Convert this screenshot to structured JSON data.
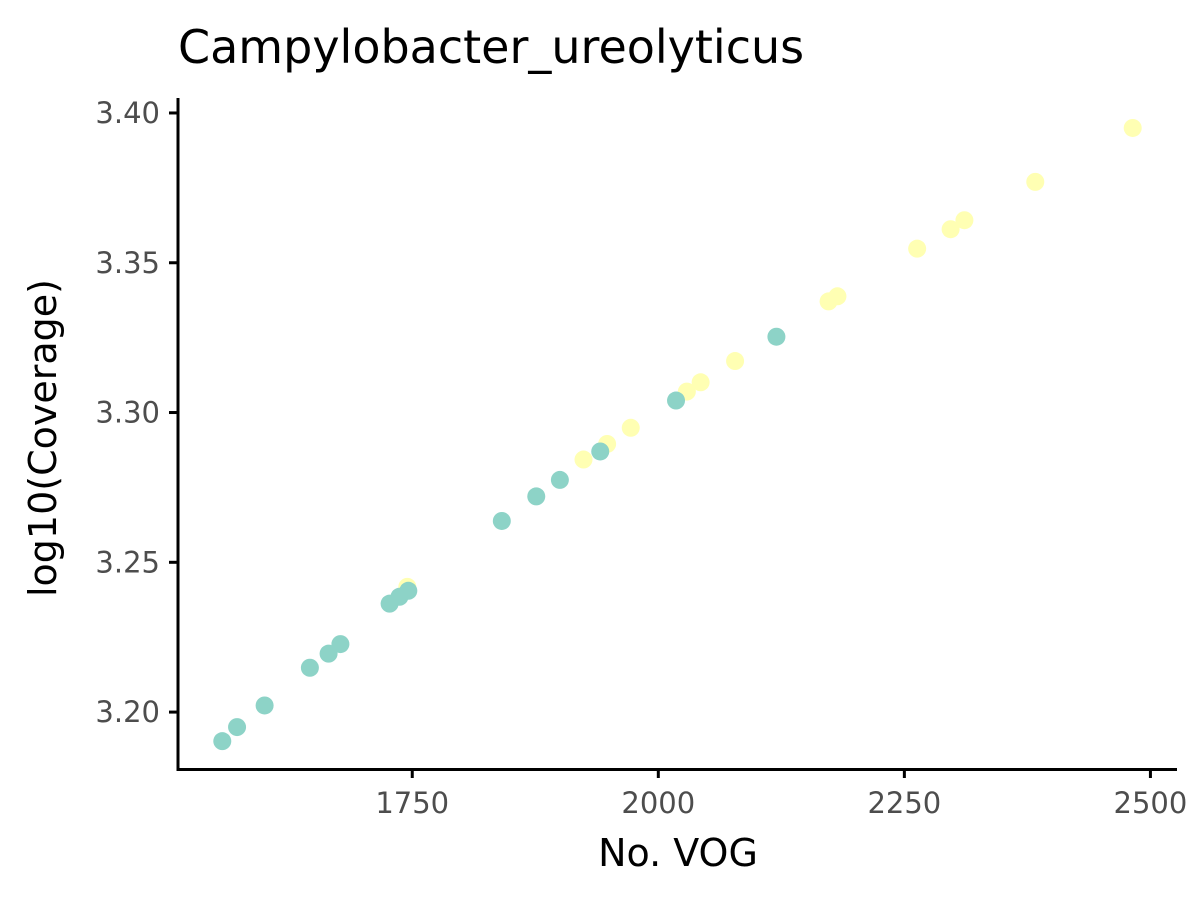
{
  "chart_data": {
    "type": "scatter",
    "title": "Campylobacter_ureolyticus",
    "xlabel": "No. VOG",
    "ylabel": "log10(Coverage)",
    "xlim": [
      1512,
      2527
    ],
    "ylim": [
      3.181,
      3.405
    ],
    "xticks": [
      {
        "value": 1750,
        "label": "1750"
      },
      {
        "value": 2000,
        "label": "2000"
      },
      {
        "value": 2250,
        "label": "2250"
      },
      {
        "value": 2500,
        "label": "2500"
      }
    ],
    "yticks": [
      {
        "value": 3.2,
        "label": "3.20"
      },
      {
        "value": 3.25,
        "label": "3.25"
      },
      {
        "value": 3.3,
        "label": "3.30"
      },
      {
        "value": 3.35,
        "label": "3.35"
      },
      {
        "value": 3.4,
        "label": "3.40"
      }
    ],
    "grid": false,
    "legend": "none",
    "series": [
      {
        "color": "#ffffb3",
        "points": [
          {
            "x": 1745,
            "y": 3.2418
          },
          {
            "x": 1924,
            "y": 3.2843
          },
          {
            "x": 1948,
            "y": 3.2895
          },
          {
            "x": 1972,
            "y": 3.2949
          },
          {
            "x": 2029,
            "y": 3.307
          },
          {
            "x": 2043,
            "y": 3.3101
          },
          {
            "x": 2078,
            "y": 3.3172
          },
          {
            "x": 2173,
            "y": 3.3371
          },
          {
            "x": 2182,
            "y": 3.3388
          },
          {
            "x": 2263,
            "y": 3.3547
          },
          {
            "x": 2297,
            "y": 3.3612
          },
          {
            "x": 2311,
            "y": 3.3642
          },
          {
            "x": 2383,
            "y": 3.377
          },
          {
            "x": 2482,
            "y": 3.395
          }
        ]
      },
      {
        "color": "#8dd3c7",
        "points": [
          {
            "x": 1557,
            "y": 3.1903
          },
          {
            "x": 1572,
            "y": 3.195
          },
          {
            "x": 1600,
            "y": 3.2022
          },
          {
            "x": 1646,
            "y": 3.2148
          },
          {
            "x": 1665,
            "y": 3.2195
          },
          {
            "x": 1677,
            "y": 3.2227
          },
          {
            "x": 1727,
            "y": 3.2362
          },
          {
            "x": 1737,
            "y": 3.2385
          },
          {
            "x": 1746,
            "y": 3.2405
          },
          {
            "x": 1841,
            "y": 3.2638
          },
          {
            "x": 1876,
            "y": 3.272
          },
          {
            "x": 1900,
            "y": 3.2775
          },
          {
            "x": 1941,
            "y": 3.287
          },
          {
            "x": 2018,
            "y": 3.304
          },
          {
            "x": 2120,
            "y": 3.3253
          }
        ]
      }
    ]
  }
}
